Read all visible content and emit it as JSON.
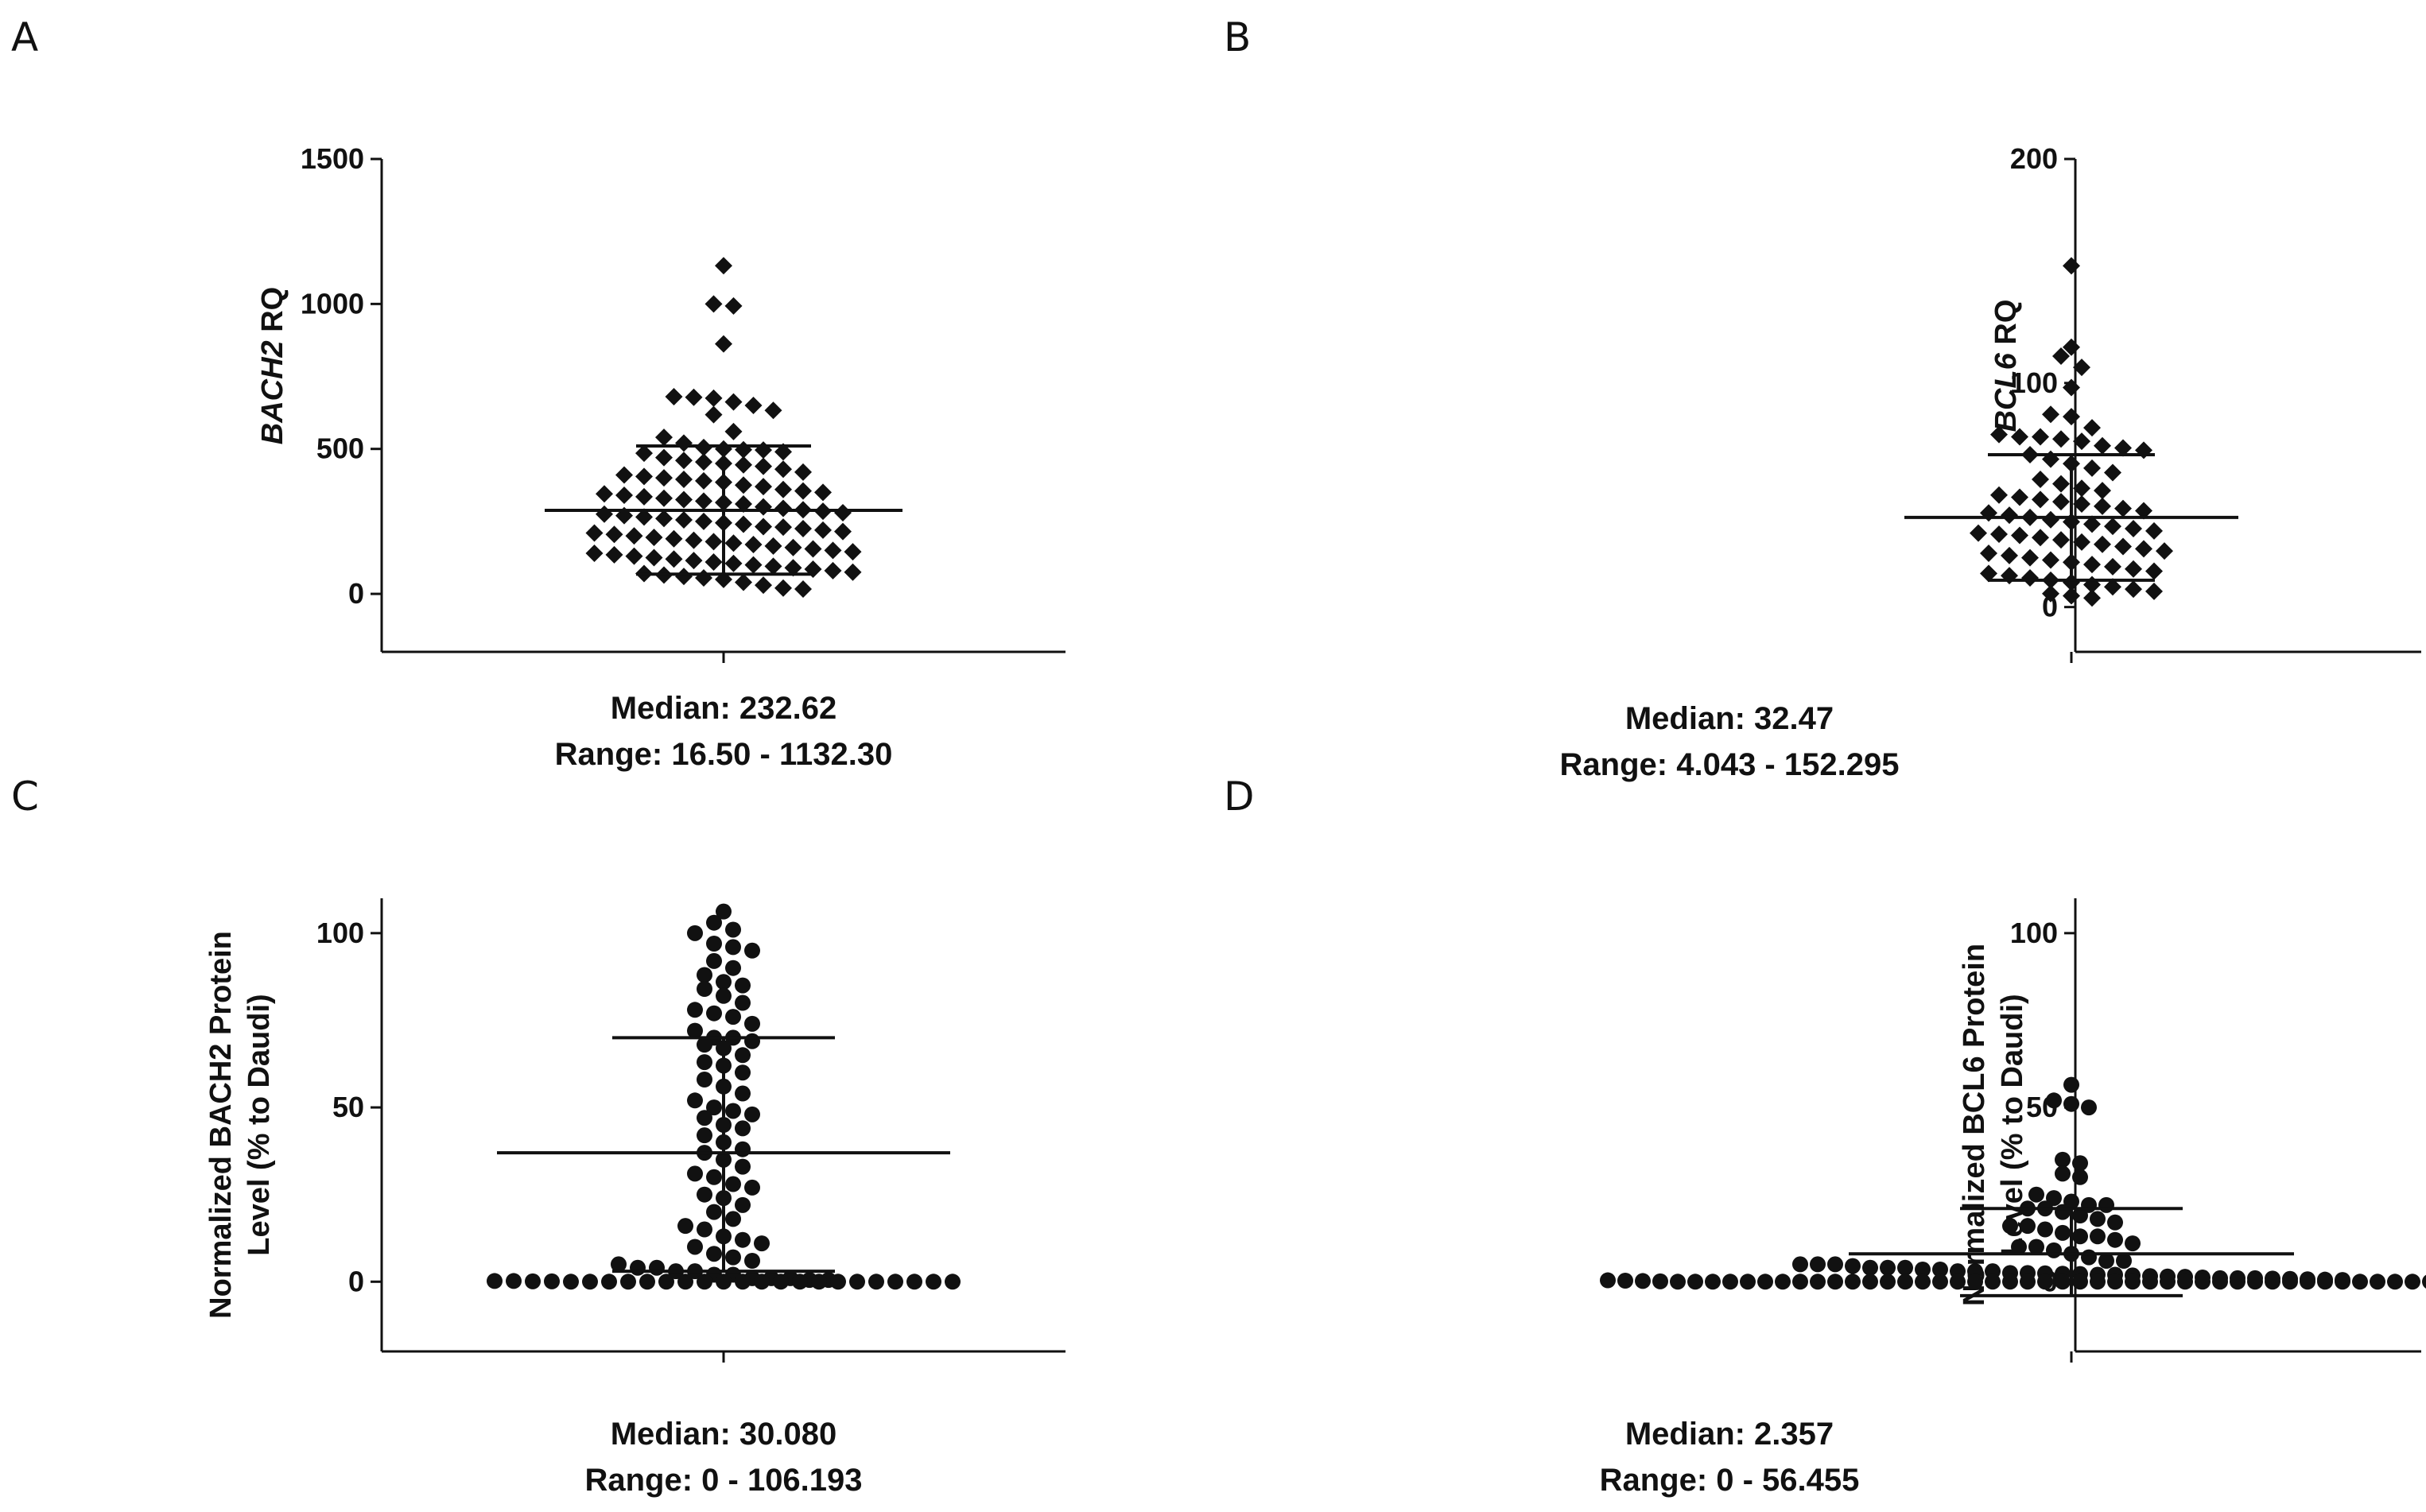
{
  "chart_data": [
    {
      "panel": "A",
      "type": "scatter",
      "marker": "diamond",
      "ylabel_italic": "BACH2",
      "ylabel_rest": " RQ",
      "ylim": [
        -200,
        1500
      ],
      "yticks": [
        0,
        500,
        1000,
        1500
      ],
      "mean": 288,
      "sd_upper": 510,
      "sd_lower": 68,
      "caption_median": "Median: 232.62",
      "caption_range": "Range: 16.50 - 1132.30",
      "values": [
        1132,
        1000,
        993,
        862,
        680,
        678,
        675,
        662,
        650,
        633,
        618,
        560,
        540,
        520,
        505,
        500,
        497,
        496,
        490,
        485,
        470,
        460,
        455,
        450,
        445,
        440,
        430,
        420,
        410,
        405,
        400,
        395,
        390,
        385,
        375,
        370,
        360,
        355,
        350,
        345,
        340,
        335,
        330,
        325,
        320,
        315,
        310,
        300,
        295,
        290,
        285,
        280,
        275,
        270,
        265,
        260,
        255,
        250,
        245,
        240,
        232,
        230,
        225,
        220,
        215,
        210,
        205,
        200,
        195,
        190,
        185,
        180,
        175,
        170,
        165,
        160,
        155,
        150,
        145,
        140,
        135,
        130,
        125,
        120,
        115,
        110,
        105,
        100,
        95,
        90,
        85,
        80,
        75,
        70,
        65,
        60,
        55,
        50,
        40,
        30,
        20,
        16.5
      ]
    },
    {
      "panel": "B",
      "type": "scatter",
      "marker": "diamond",
      "ylabel_italic": "BCL6",
      "ylabel_rest": " RQ",
      "ylim": [
        -20,
        200
      ],
      "yticks": [
        0,
        100,
        200
      ],
      "mean": 40,
      "sd_upper": 68,
      "sd_lower": 12,
      "caption_median": "Median: 32.47",
      "caption_range": "Range: 4.043 - 152.295",
      "values": [
        152.3,
        116,
        112,
        107,
        98,
        86,
        85,
        80,
        77,
        76,
        76,
        75,
        74,
        72,
        71,
        70,
        68,
        66,
        64,
        62,
        60,
        57,
        55,
        53,
        52,
        50,
        49,
        48,
        47,
        46,
        45,
        44,
        43,
        42,
        41,
        40,
        39,
        38,
        37,
        36,
        35,
        34,
        33,
        32.5,
        32,
        31,
        30,
        29,
        28,
        27,
        26,
        25,
        24,
        23,
        22,
        21,
        20,
        19,
        18,
        17,
        16,
        15,
        14,
        13,
        12,
        11,
        10,
        9,
        8,
        7,
        6,
        5,
        4.04
      ]
    },
    {
      "panel": "C",
      "type": "scatter",
      "marker": "circle",
      "ylabel_line1": "Normalized BACH2 Protein",
      "ylabel_line2": "Level (% to Daudi)",
      "ylim": [
        -20,
        110
      ],
      "yticks": [
        0,
        50,
        100
      ],
      "mean": 37,
      "sd_upper": 70,
      "sd_lower": 3,
      "caption_median": "Median: 30.080",
      "caption_range": "Range: 0 - 106.193",
      "values": [
        106.2,
        103,
        101,
        100,
        97,
        96,
        95,
        92,
        90,
        88,
        86,
        85,
        84,
        82,
        80,
        78,
        77,
        76,
        74,
        72,
        70,
        70,
        69,
        68,
        67,
        65,
        63,
        62,
        60,
        58,
        56,
        54,
        52,
        50,
        49,
        48,
        47,
        45,
        44,
        42,
        40,
        38,
        37,
        35,
        33,
        31,
        30,
        28,
        27,
        25,
        24,
        22,
        20,
        18,
        16,
        15,
        13,
        12,
        11,
        10,
        8,
        7,
        6,
        5,
        4,
        4,
        3,
        3,
        2,
        2,
        1,
        1,
        1,
        0.5,
        0.5,
        0.2,
        0.2,
        0.1,
        0.1,
        0,
        0,
        0,
        0,
        0,
        0,
        0,
        0,
        0,
        0,
        0,
        0,
        0,
        0,
        0,
        0,
        0,
        0,
        0,
        0,
        0
      ]
    },
    {
      "panel": "D",
      "type": "scatter",
      "marker": "circle",
      "ylabel_line1": "Normalized BCL6 Protein",
      "ylabel_line2": "Level (% to Daudi)",
      "ylim": [
        -20,
        110
      ],
      "yticks": [
        0,
        50,
        100
      ],
      "mean": 8,
      "sd_upper": 21,
      "sd_lower": -4,
      "caption_median": "Median: 2.357",
      "caption_range": "Range: 0 - 56.455",
      "values": [
        56.5,
        52,
        51,
        50,
        35,
        34,
        31,
        30,
        25,
        24,
        23,
        22,
        22,
        21,
        21,
        20,
        19,
        18,
        17,
        16,
        16,
        15,
        14,
        13,
        13,
        12,
        11,
        10,
        10,
        9,
        8,
        7,
        6,
        6,
        5,
        5,
        5,
        4.5,
        4,
        4,
        4,
        3.5,
        3.5,
        3,
        3,
        3,
        2.5,
        2.5,
        2.4,
        2.3,
        2.2,
        2,
        2,
        1.8,
        1.6,
        1.5,
        1.4,
        1.2,
        1,
        1,
        1,
        0.9,
        0.8,
        0.7,
        0.6,
        0.5,
        0.4,
        0.3,
        0.2,
        0.1,
        0,
        0,
        0,
        0,
        0,
        0,
        0,
        0,
        0,
        0,
        0,
        0,
        0,
        0,
        0,
        0,
        0,
        0,
        0,
        0,
        0,
        0,
        0,
        0,
        0,
        0,
        0,
        0,
        0,
        0,
        0,
        0,
        0,
        0,
        0,
        0,
        0,
        0,
        0,
        0,
        0,
        0,
        0,
        0,
        0,
        0,
        0,
        0,
        0,
        0
      ]
    }
  ]
}
